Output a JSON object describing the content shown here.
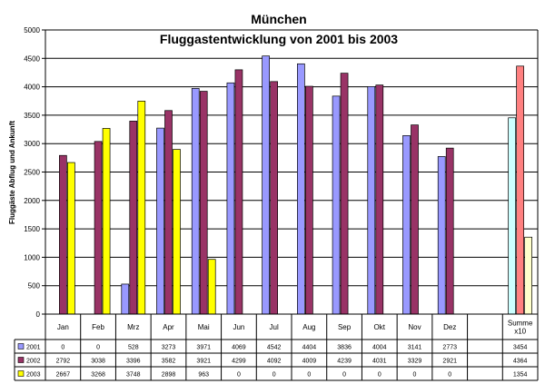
{
  "chart_data": {
    "type": "bar",
    "title": "München",
    "subtitle": "Fluggastentwicklung von 2001 bis 2003",
    "ylabel": "Fluggäste Abflug und Ankunft",
    "xlabel": "",
    "ylim": [
      0,
      5000
    ],
    "yticks": [
      0,
      500,
      1000,
      1500,
      2000,
      2500,
      3000,
      3500,
      4000,
      4500,
      5000
    ],
    "grid": true,
    "legend": "data-table",
    "categories": [
      "Jan",
      "Feb",
      "Mrz",
      "Apr",
      "Mai",
      "Jun",
      "Jul",
      "Aug",
      "Sep",
      "Okt",
      "Nov",
      "Dez",
      "",
      "Summe x10"
    ],
    "category_lines": [
      [
        "Jan"
      ],
      [
        "Feb"
      ],
      [
        "Mrz"
      ],
      [
        "Apr"
      ],
      [
        "Mai"
      ],
      [
        "Jun"
      ],
      [
        "Jul"
      ],
      [
        "Aug"
      ],
      [
        "Sep"
      ],
      [
        "Okt"
      ],
      [
        "Nov"
      ],
      [
        "Dez"
      ],
      [
        ""
      ],
      [
        "Summe",
        "x10"
      ]
    ],
    "series": [
      {
        "name": "2001",
        "color": "#9999ff",
        "values": [
          0,
          0,
          528,
          3273,
          3971,
          4069,
          4542,
          4404,
          3836,
          4004,
          3141,
          2773,
          null,
          3454
        ],
        "labels": [
          "0",
          "0",
          "528",
          "3273",
          "3971",
          "4069",
          "4542",
          "4404",
          "3836",
          "4004",
          "3141",
          "2773",
          "",
          "3454"
        ]
      },
      {
        "name": "2002",
        "color": "#993366",
        "values": [
          2792,
          3038,
          3396,
          3582,
          3921,
          4299,
          4092,
          4009,
          4239,
          4031,
          3329,
          2921,
          null,
          4364
        ],
        "labels": [
          "2792",
          "3038",
          "3396",
          "3582",
          "3921",
          "4299",
          "4092",
          "4009",
          "4239",
          "4031",
          "3329",
          "2921",
          "",
          "4364"
        ]
      },
      {
        "name": "2003",
        "color": "#ffff00",
        "values": [
          2667,
          3268,
          3748,
          2898,
          963,
          0,
          0,
          0,
          0,
          0,
          0,
          0,
          null,
          1354
        ],
        "labels": [
          "2667",
          "3268",
          "3748",
          "2898",
          "963",
          "0",
          "0",
          "0",
          "0",
          "0",
          "0",
          "0",
          "",
          "1354"
        ]
      }
    ],
    "summary_colors": [
      "#ccffff",
      "#ff8080",
      "#ffffcc"
    ],
    "summary_index": 13
  }
}
